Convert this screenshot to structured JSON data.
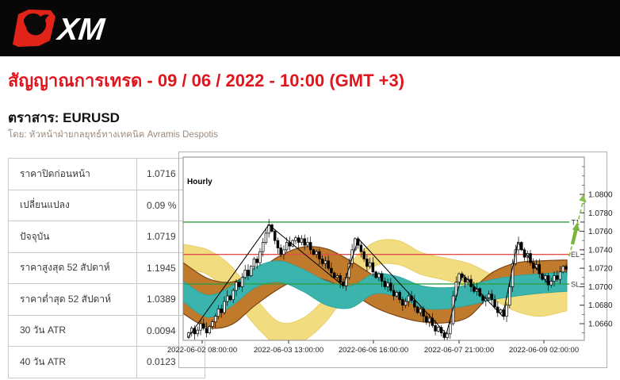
{
  "header": {
    "brand": "XM",
    "bar_color": "#070707",
    "logo_red": "#e2231a"
  },
  "signal": {
    "title": "สัญญาณการเทรด - 09 / 06 / 2022 - 10:00 (GMT +3)",
    "title_color": "#e0161f",
    "instrument_label": "ตราสาร: EURUSD",
    "byline": "โดย: หัวหน้าฝ่ายกลยุทธ์ทางเทคนิค Avramis Despotis"
  },
  "stats_table": {
    "rows": [
      {
        "label": "ราคาปิดก่อนหน้า",
        "value": "1.0716"
      },
      {
        "label": "เปลี่ยนแปลง",
        "value": "0.09 %"
      },
      {
        "label": "ปัจจุบัน",
        "value": "1.0719"
      },
      {
        "label": "ราคาสูงสุด 52 สัปดาห์",
        "value": "1.1945"
      },
      {
        "label": "ราคาต่ำสุด 52 สัปดาห์",
        "value": "1.0389"
      },
      {
        "label": "30 วัน ATR",
        "value": "0.0094"
      },
      {
        "label": "40 วัน ATR",
        "value": "0.0123"
      }
    ]
  },
  "chart_data": {
    "type": "candlestick",
    "instrument": "EURUSD",
    "timeframe_label": "Hourly",
    "current_price": 1.0719,
    "x_axis_labels": [
      "2022-06-02 08:00:00",
      "2022-06-03 13:00:00",
      "2022-06-06 16:00:00",
      "2022-06-07 21:00:00",
      "2022-06-09 02:00:00"
    ],
    "y_axis_labels": [
      {
        "text": "1.0800",
        "price": 1.08
      },
      {
        "text": "1.0780",
        "price": 1.078
      },
      {
        "text": "1.0760",
        "price": 1.076
      },
      {
        "text": "1.0740",
        "price": 1.074
      },
      {
        "text": "1.0720",
        "price": 1.072
      },
      {
        "text": "1.0700",
        "price": 1.07
      },
      {
        "text": "1.0680",
        "price": 1.068
      },
      {
        "text": "1.0660",
        "price": 1.066
      }
    ],
    "levels": [
      {
        "name": "T1",
        "price": 1.077,
        "color": "#2f9e41"
      },
      {
        "name": "EL",
        "price": 1.0735,
        "color": "#e0504a"
      },
      {
        "name": "SL",
        "price": 1.0703,
        "color": "#2f9e41"
      }
    ],
    "signal_arrow": {
      "from_price": 1.0733,
      "to_price": 1.0798,
      "style": "dashed",
      "color": "#8bbf4f",
      "fat_color": "#7cb342"
    },
    "zigzag": [
      [
        12,
        1.0645
      ],
      [
        114,
        1.0767
      ],
      [
        208,
        1.0701
      ],
      [
        227,
        1.0752
      ],
      [
        338,
        1.0649
      ],
      [
        358,
        1.0714
      ],
      [
        409,
        1.0668
      ],
      [
        428,
        1.0748
      ],
      [
        467,
        1.0702
      ]
    ],
    "bands": {
      "xs": [
        6,
        37,
        67,
        97,
        127,
        157,
        187,
        217,
        247,
        277,
        307,
        337,
        367,
        397,
        427,
        457,
        490
      ],
      "yellow": {
        "fill": "#f2dc80",
        "stroke": "#e6c95f",
        "top": [
          1.0746,
          1.074,
          1.0722,
          1.0688,
          1.0662,
          1.0666,
          1.069,
          1.0726,
          1.0748,
          1.075,
          1.0737,
          1.0731,
          1.0725,
          1.0712,
          1.0697,
          1.0692,
          1.0698
        ],
        "bottom": [
          1.072,
          1.0713,
          1.069,
          1.0658,
          1.0636,
          1.0641,
          1.0663,
          1.0698,
          1.0722,
          1.0724,
          1.0713,
          1.0707,
          1.0699,
          1.0686,
          1.0673,
          1.0668,
          1.0674
        ]
      },
      "brown": {
        "fill": "#c07a2c",
        "stroke": "#7b4617",
        "top": [
          1.0726,
          1.0709,
          1.0705,
          1.0716,
          1.0733,
          1.0743,
          1.0741,
          1.0728,
          1.0712,
          1.07,
          1.0692,
          1.069,
          1.0696,
          1.0716,
          1.0726,
          1.0728,
          1.0729
        ],
        "bottom": [
          1.0671,
          1.0656,
          1.0659,
          1.068,
          1.0698,
          1.071,
          1.0707,
          1.0694,
          1.0678,
          1.0668,
          1.0662,
          1.0661,
          1.0668,
          1.0694,
          1.0706,
          1.071,
          1.0712
        ]
      },
      "teal": {
        "fill": "#3cb4ae",
        "stroke": "#2aa09a",
        "top": [
          1.0706,
          1.0691,
          1.0701,
          1.0721,
          1.0728,
          1.0719,
          1.0706,
          1.0701,
          1.0714,
          1.0711,
          1.0701,
          1.0699,
          1.0702,
          1.0708,
          1.0712,
          1.0714,
          1.0716
        ],
        "bottom": [
          1.0684,
          1.0667,
          1.0679,
          1.0699,
          1.0705,
          1.0695,
          1.068,
          1.0677,
          1.0692,
          1.0689,
          1.0677,
          1.0676,
          1.068,
          1.0686,
          1.069,
          1.0693,
          1.0695
        ]
      }
    },
    "closes": [
      1.065,
      1.0655,
      1.0649,
      1.0653,
      1.066,
      1.0655,
      1.065,
      1.0657,
      1.0662,
      1.0668,
      1.0676,
      1.0672,
      1.0684,
      1.069,
      1.0686,
      1.0696,
      1.0705,
      1.07,
      1.071,
      1.0718,
      1.0712,
      1.0722,
      1.073,
      1.0726,
      1.0738,
      1.0748,
      1.0758,
      1.0767,
      1.076,
      1.075,
      1.0742,
      1.0735,
      1.074,
      1.0748,
      1.0744,
      1.075,
      1.0753,
      1.0748,
      1.0752,
      1.0745,
      1.0748,
      1.074,
      1.0735,
      1.0738,
      1.073,
      1.0725,
      1.0728,
      1.072,
      1.0715,
      1.071,
      1.0712,
      1.0705,
      1.0701,
      1.071,
      1.0725,
      1.074,
      1.0752,
      1.0745,
      1.0738,
      1.073,
      1.0722,
      1.0726,
      1.0716,
      1.071,
      1.0714,
      1.0706,
      1.07,
      1.0704,
      1.0696,
      1.069,
      1.0694,
      1.0686,
      1.068,
      1.0684,
      1.069,
      1.0685,
      1.0678,
      1.0672,
      1.0676,
      1.0668,
      1.0662,
      1.0666,
      1.0658,
      1.0652,
      1.0656,
      1.065,
      1.0645,
      1.0649,
      1.066,
      1.069,
      1.0705,
      1.0714,
      1.071,
      1.0705,
      1.0708,
      1.07,
      1.0695,
      1.0698,
      1.069,
      1.0685,
      1.0688,
      1.0692,
      1.0686,
      1.0678,
      1.0672,
      1.0675,
      1.0668,
      1.068,
      1.07,
      1.0725,
      1.074,
      1.0748,
      1.074,
      1.0732,
      1.0736,
      1.0726,
      1.072,
      1.0724,
      1.0714,
      1.0708,
      1.0712,
      1.0702,
      1.0706,
      1.0712,
      1.0708,
      1.0716,
      1.0722,
      1.0719
    ]
  }
}
